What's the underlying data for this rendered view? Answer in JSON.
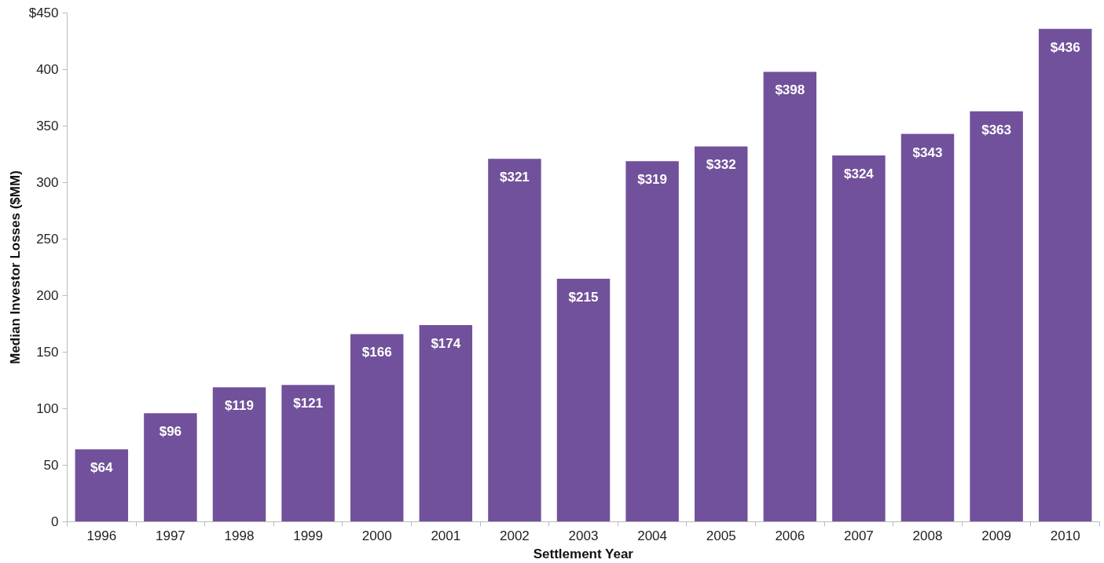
{
  "chart_data": {
    "type": "bar",
    "xlabel": "Settlement Year",
    "ylabel": "Median Investor Losses ($MM)",
    "categories": [
      "1996",
      "1997",
      "1998",
      "1999",
      "2000",
      "2001",
      "2002",
      "2003",
      "2004",
      "2005",
      "2006",
      "2007",
      "2008",
      "2009",
      "2010"
    ],
    "values": [
      64,
      96,
      119,
      121,
      166,
      174,
      321,
      215,
      319,
      332,
      398,
      324,
      343,
      363,
      436
    ],
    "value_labels": [
      "$64",
      "$96",
      "$119",
      "$121",
      "$166",
      "$174",
      "$321",
      "$215",
      "$319",
      "$332",
      "$398",
      "$324",
      "$343",
      "$363",
      "$436"
    ],
    "color": "#71519b",
    "ylim": [
      0,
      450
    ],
    "yticks": [
      0,
      50,
      100,
      150,
      200,
      250,
      300,
      350,
      400,
      {
        "value": 450,
        "label": "$450"
      }
    ],
    "grid": false
  }
}
